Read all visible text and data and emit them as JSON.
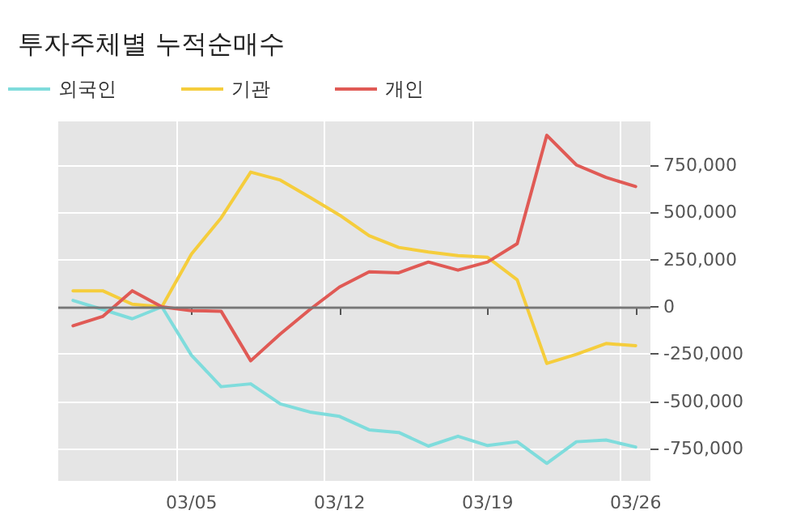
{
  "chart_data": {
    "type": "line",
    "title": "투자주체별 누적순매수",
    "categories": [
      null,
      null,
      null,
      null,
      "03/05",
      null,
      null,
      null,
      null,
      "03/12",
      null,
      null,
      null,
      null,
      "03/19",
      null,
      null,
      null,
      null,
      "03/26"
    ],
    "series": [
      {
        "name": "외국인",
        "color": "#7fdcdc",
        "values": [
          34000,
          -14000,
          -63000,
          0,
          -256000,
          -422000,
          -407000,
          -513000,
          -556000,
          -579000,
          -650000,
          -664000,
          -736000,
          -684000,
          -733000,
          -713000,
          -827000,
          -713000,
          -704000,
          -741000
        ]
      },
      {
        "name": "기관",
        "color": "#f5cd3c",
        "values": [
          85000,
          85000,
          14000,
          0,
          279000,
          470000,
          712000,
          670000,
          579000,
          485000,
          376000,
          314000,
          290000,
          271000,
          262000,
          143000,
          -299000,
          -251000,
          -194000,
          -205000
        ]
      },
      {
        "name": "개인",
        "color": "#e05a55",
        "values": [
          -100000,
          -51000,
          85000,
          0,
          -20000,
          -23000,
          -285000,
          -143000,
          -14000,
          105000,
          185000,
          180000,
          237000,
          194000,
          237000,
          334000,
          907000,
          750000,
          684000,
          636000
        ]
      }
    ],
    "ylim": [
      -920000,
      980000
    ],
    "yticks": [
      {
        "value": -750000,
        "label": "-750,000"
      },
      {
        "value": -500000,
        "label": "-500,000"
      },
      {
        "value": -250000,
        "label": "-250,000"
      },
      0,
      {
        "value": 250000,
        "label": "250,000"
      },
      {
        "value": 500000,
        "label": "500,000"
      },
      {
        "value": 750000,
        "label": "750,000"
      }
    ],
    "ref_lines": [
      {
        "axis": "y",
        "value": 0,
        "color": "#777777"
      }
    ],
    "grid": true,
    "legend": "top left",
    "marker": "none",
    "line_style": "solid"
  }
}
